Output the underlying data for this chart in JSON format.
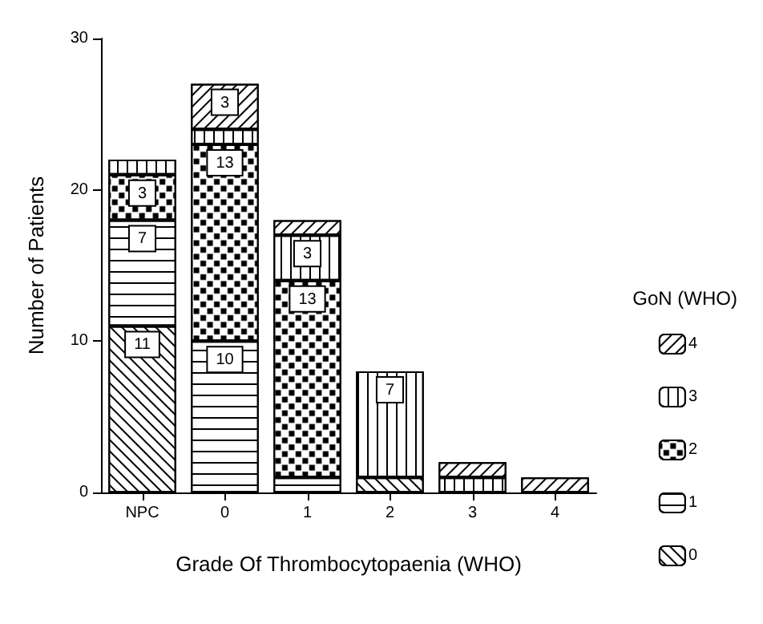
{
  "chart_data": {
    "type": "bar",
    "stacked": true,
    "xlabel": "Grade Of Thrombocytopaenia (WHO)",
    "ylabel": "Number of Patients",
    "legend_title": "GoN (WHO)",
    "legend": "right",
    "categories": [
      "NPC",
      "0",
      "1",
      "2",
      "3",
      "4"
    ],
    "ylim": [
      0,
      30
    ],
    "yticks": [
      0,
      10,
      20,
      30
    ],
    "grid": false,
    "series": [
      {
        "name": "0",
        "color": "#ffffff",
        "values": [
          11,
          null,
          null,
          1,
          null,
          null
        ],
        "value_labels": [
          "11",
          null,
          null,
          null,
          null,
          null
        ]
      },
      {
        "name": "1",
        "color": "#ffffff",
        "values": [
          7,
          10,
          1,
          null,
          null,
          null
        ],
        "value_labels": [
          "7",
          "10",
          null,
          null,
          null,
          null
        ]
      },
      {
        "name": "2",
        "color": "#ffffff",
        "values": [
          3,
          13,
          13,
          null,
          null,
          null
        ],
        "value_labels": [
          "3",
          "13",
          "13",
          null,
          null,
          null
        ]
      },
      {
        "name": "3",
        "color": "#ffffff",
        "values": [
          1,
          1,
          3,
          7,
          1,
          null
        ],
        "value_labels": [
          null,
          null,
          "3",
          "7",
          null,
          null
        ]
      },
      {
        "name": "4",
        "color": "#ffffff",
        "values": [
          null,
          3,
          1,
          null,
          1,
          1
        ],
        "value_labels": [
          null,
          "3",
          null,
          null,
          null,
          null
        ]
      }
    ]
  }
}
